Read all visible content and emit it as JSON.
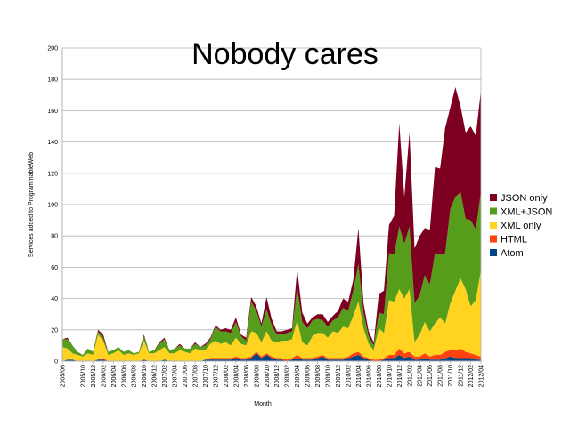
{
  "chart_data": {
    "type": "area",
    "stacked": true,
    "title": "Nobody cares",
    "xlabel": "Month",
    "ylabel": "Services added to ProgrammableWeb",
    "ylim": [
      0,
      200
    ],
    "yticks": [
      0,
      20,
      40,
      60,
      80,
      100,
      120,
      140,
      160,
      180,
      200
    ],
    "grid": true,
    "legend_position": "right",
    "x_tick_labels": [
      "2005/06",
      "2005/10",
      "2005/12",
      "2006/02",
      "2006/04",
      "2006/06",
      "2006/08",
      "2006/10",
      "2006/12",
      "2007/02",
      "2007/04",
      "2007/06",
      "2007/08",
      "2007/10",
      "2007/12",
      "2008/02",
      "2008/04",
      "2008/06",
      "2008/08",
      "2008/10",
      "2008/12",
      "2009/02",
      "2009/04",
      "2009/06",
      "2009/08",
      "2009/10",
      "2009/12",
      "2010/02",
      "2010/04",
      "2010/06",
      "2010/08",
      "2010/10",
      "2010/12",
      "2011/02",
      "2011/04",
      "2011/06",
      "2011/08",
      "2011/10",
      "2011/12",
      "2012/02",
      "2012/04"
    ],
    "x": [
      "2005/06",
      "2005/07",
      "2005/08",
      "2005/09",
      "2005/10",
      "2005/11",
      "2005/12",
      "2006/01",
      "2006/02",
      "2006/03",
      "2006/04",
      "2006/05",
      "2006/06",
      "2006/07",
      "2006/08",
      "2006/09",
      "2006/10",
      "2006/11",
      "2006/12",
      "2007/01",
      "2007/02",
      "2007/03",
      "2007/04",
      "2007/05",
      "2007/06",
      "2007/07",
      "2007/08",
      "2007/09",
      "2007/10",
      "2007/11",
      "2007/12",
      "2008/01",
      "2008/02",
      "2008/03",
      "2008/04",
      "2008/05",
      "2008/06",
      "2008/07",
      "2008/08",
      "2008/09",
      "2008/10",
      "2008/11",
      "2008/12",
      "2009/01",
      "2009/02",
      "2009/03",
      "2009/04",
      "2009/05",
      "2009/06",
      "2009/07",
      "2009/08",
      "2009/09",
      "2009/10",
      "2009/11",
      "2009/12",
      "2010/01",
      "2010/02",
      "2010/03",
      "2010/04",
      "2010/05",
      "2010/06",
      "2010/07",
      "2010/08",
      "2010/09",
      "2010/10",
      "2010/11",
      "2010/12",
      "2011/01",
      "2011/02",
      "2011/03",
      "2011/04",
      "2011/05",
      "2011/06",
      "2011/07",
      "2011/08",
      "2011/09",
      "2011/10",
      "2011/11",
      "2011/12",
      "2012/01",
      "2012/02",
      "2012/03",
      "2012/04"
    ],
    "series": [
      {
        "name": "Atom",
        "color": "#004586",
        "values": [
          0,
          1,
          1,
          0,
          0,
          0,
          0,
          1,
          1,
          0,
          0,
          0,
          0,
          0,
          0,
          0,
          1,
          0,
          0,
          0,
          1,
          0,
          0,
          0,
          0,
          0,
          0,
          0,
          1,
          1,
          1,
          1,
          1,
          1,
          2,
          1,
          1,
          2,
          5,
          2,
          4,
          2,
          1,
          1,
          0,
          1,
          2,
          1,
          1,
          1,
          2,
          3,
          1,
          1,
          1,
          1,
          2,
          3,
          4,
          2,
          1,
          0,
          0,
          1,
          2,
          2,
          4,
          2,
          3,
          1,
          1,
          2,
          1,
          1,
          1,
          2,
          3,
          2,
          2,
          2,
          2,
          1,
          1
        ]
      },
      {
        "name": "HTML",
        "color": "#ff420e",
        "values": [
          0,
          0,
          0,
          0,
          0,
          0,
          0,
          0,
          1,
          0,
          0,
          0,
          0,
          0,
          0,
          0,
          0,
          0,
          0,
          0,
          0,
          0,
          0,
          0,
          0,
          0,
          0,
          0,
          0,
          1,
          1,
          1,
          1,
          1,
          1,
          1,
          1,
          1,
          1,
          1,
          1,
          1,
          1,
          1,
          1,
          1,
          2,
          1,
          1,
          1,
          1,
          1,
          1,
          1,
          1,
          1,
          1,
          2,
          2,
          1,
          1,
          1,
          1,
          1,
          2,
          2,
          4,
          3,
          3,
          2,
          2,
          3,
          2,
          3,
          3,
          4,
          4,
          5,
          6,
          4,
          3,
          3,
          2
        ]
      },
      {
        "name": "XML only",
        "color": "#ffd320",
        "values": [
          9,
          7,
          4,
          4,
          3,
          5,
          4,
          16,
          11,
          4,
          5,
          7,
          4,
          5,
          4,
          5,
          12,
          5,
          5,
          7,
          8,
          5,
          5,
          7,
          6,
          5,
          8,
          7,
          6,
          9,
          11,
          9,
          10,
          8,
          12,
          9,
          8,
          16,
          12,
          9,
          14,
          10,
          10,
          11,
          12,
          12,
          22,
          10,
          8,
          14,
          15,
          14,
          13,
          17,
          16,
          20,
          18,
          24,
          32,
          18,
          9,
          6,
          20,
          16,
          35,
          34,
          38,
          35,
          40,
          9,
          14,
          20,
          16,
          20,
          24,
          18,
          30,
          38,
          45,
          40,
          30,
          35,
          55
        ]
      },
      {
        "name": "XML+JSON",
        "color": "#579d1c",
        "values": [
          5,
          6,
          5,
          2,
          1,
          3,
          2,
          2,
          2,
          2,
          2,
          2,
          2,
          2,
          1,
          1,
          3,
          1,
          2,
          4,
          5,
          2,
          3,
          3,
          2,
          3,
          3,
          2,
          3,
          3,
          9,
          8,
          7,
          8,
          10,
          5,
          3,
          19,
          14,
          10,
          14,
          10,
          5,
          4,
          5,
          5,
          21,
          13,
          11,
          10,
          9,
          8,
          7,
          7,
          10,
          12,
          11,
          16,
          24,
          10,
          5,
          3,
          10,
          12,
          30,
          30,
          40,
          35,
          40,
          25,
          25,
          30,
          30,
          45,
          40,
          45,
          60,
          60,
          55,
          45,
          55,
          45,
          50
        ]
      },
      {
        "name": "JSON only",
        "color": "#7e0021",
        "values": [
          0,
          1,
          0,
          0,
          0,
          0,
          0,
          1,
          2,
          0,
          0,
          0,
          0,
          0,
          0,
          0,
          1,
          0,
          0,
          1,
          1,
          0,
          0,
          1,
          0,
          0,
          1,
          0,
          1,
          1,
          1,
          1,
          2,
          2,
          3,
          1,
          2,
          3,
          3,
          2,
          8,
          4,
          2,
          2,
          2,
          2,
          12,
          6,
          3,
          2,
          3,
          4,
          3,
          3,
          4,
          6,
          6,
          7,
          23,
          6,
          3,
          2,
          12,
          15,
          18,
          25,
          66,
          30,
          60,
          35,
          38,
          30,
          35,
          55,
          55,
          80,
          65,
          70,
          55,
          55,
          60,
          60,
          65
        ]
      }
    ]
  },
  "legend_order": [
    "JSON only",
    "XML+JSON",
    "XML only",
    "HTML",
    "Atom"
  ]
}
